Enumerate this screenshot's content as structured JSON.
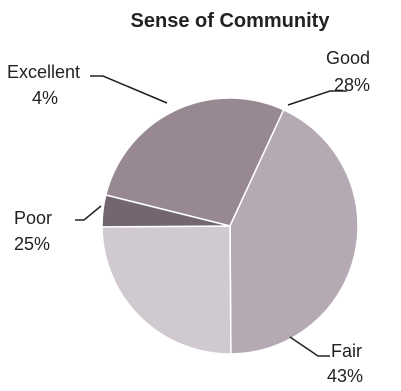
{
  "chart_data": {
    "type": "pie",
    "title": "Sense of Community",
    "slices": [
      {
        "label": "Good",
        "value": 28,
        "value_text": "28%",
        "color": "#978892"
      },
      {
        "label": "Fair",
        "value": 43,
        "value_text": "43%",
        "color": "#b5a9b3"
      },
      {
        "label": "Poor",
        "value": 25,
        "value_text": "25%",
        "color": "#d1c9d0"
      },
      {
        "label": "Excellent",
        "value": 4,
        "value_text": "4%",
        "color": "#736671"
      }
    ]
  }
}
